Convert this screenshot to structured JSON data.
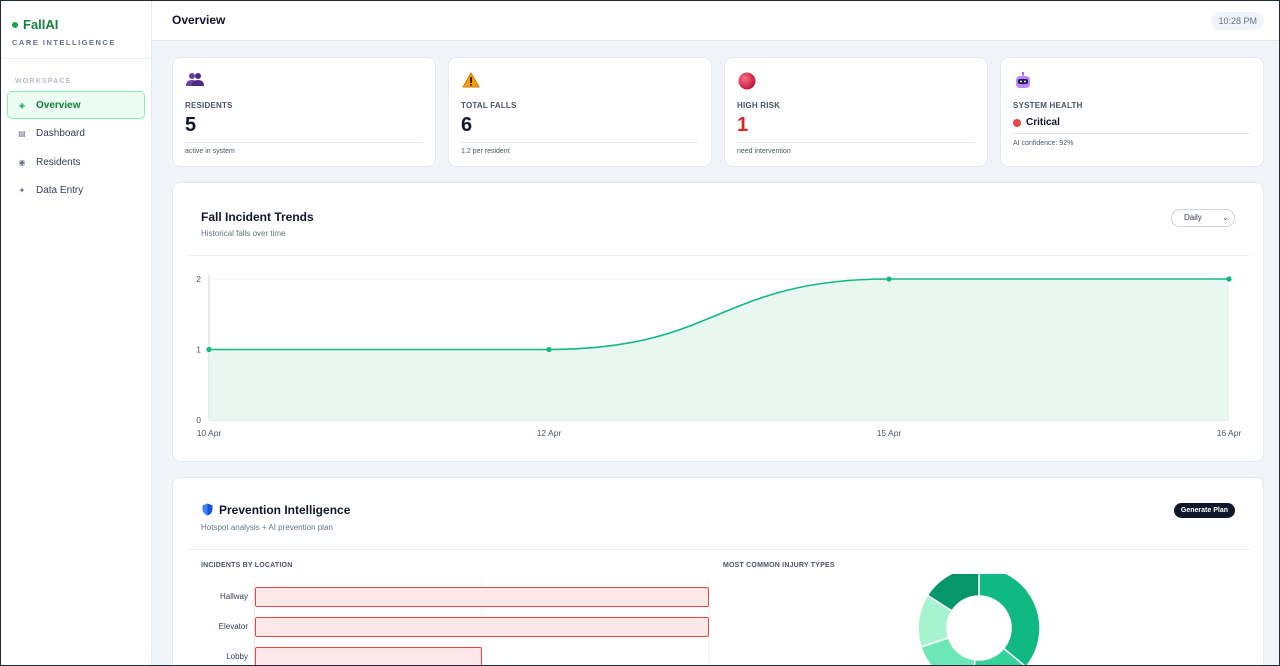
{
  "sidebar": {
    "brand_name": "FallAI",
    "brand_subtitle": "CARE INTELLIGENCE",
    "section_label": "WORKSPACE",
    "items": [
      {
        "label": "Overview",
        "icon": "overview-icon",
        "active": true
      },
      {
        "label": "Dashboard",
        "icon": "dashboard-icon",
        "active": false
      },
      {
        "label": "Residents",
        "icon": "residents-icon",
        "active": false
      },
      {
        "label": "Data Entry",
        "icon": "data-entry-icon",
        "active": false
      }
    ]
  },
  "header": {
    "title": "Overview",
    "time": "10:28 PM"
  },
  "stats": [
    {
      "icon": "people-icon",
      "label": "RESIDENTS",
      "value": "5",
      "sub": "active in system"
    },
    {
      "icon": "warning-icon",
      "label": "TOTAL FALLS",
      "value": "6",
      "sub": "1.2 per resident"
    },
    {
      "icon": "red-circle-icon",
      "label": "HIGH RISK",
      "value": "1",
      "sub": "need intervention"
    },
    {
      "icon": "robot-icon",
      "label": "SYSTEM HEALTH",
      "value": "Critical",
      "sub": "AI confidence: 92%"
    }
  ],
  "trend": {
    "title": "Fall Incident Trends",
    "subtitle": "Historical falls over time",
    "period_select": "Daily"
  },
  "chart_data": {
    "type": "area",
    "categories": [
      "10 Apr",
      "12 Apr",
      "15 Apr",
      "16 Apr"
    ],
    "values": [
      1,
      1,
      2,
      2
    ],
    "y_ticks": [
      "0",
      "1",
      "2"
    ],
    "ylim": [
      0,
      2
    ],
    "grid": true,
    "colors": {
      "line": "#10b981",
      "fill": "#e8f8f1"
    }
  },
  "prevention": {
    "title": "Prevention Intelligence",
    "subtitle": "Hotspot analysis + AI prevention plan",
    "generate_label": "Generate Plan",
    "locations_label": "INCIDENTS BY LOCATION",
    "injury_label": "MOST COMMON INJURY TYPES",
    "locations": [
      {
        "name": "Hallway",
        "count": 2
      },
      {
        "name": "Elevator",
        "count": 2
      },
      {
        "name": "Lobby",
        "count": 1
      }
    ],
    "donut_colors": [
      "#10b981",
      "#059669",
      "#a7f3d0",
      "#6ee7b7",
      "#34d399"
    ]
  }
}
